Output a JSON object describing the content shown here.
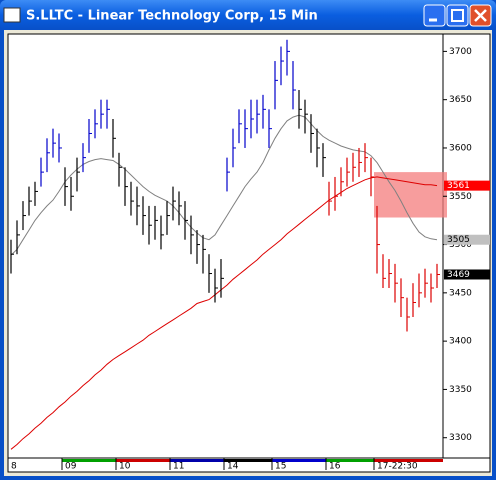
{
  "window": {
    "title": "S.LLTC - Linear Technology Corp, 15 Min"
  },
  "chart_data": {
    "type": "ohlc",
    "xlim": [
      -0.5,
      72
    ],
    "ylim": [
      3279,
      3718
    ],
    "yticks": [
      3700,
      3650,
      3600,
      3550,
      3500,
      3450,
      3400,
      3350,
      3300
    ],
    "xticks": [
      {
        "value": 0,
        "label": "8"
      },
      {
        "value": 9,
        "label": "09"
      },
      {
        "value": 18,
        "label": "10"
      },
      {
        "value": 27,
        "label": "11"
      },
      {
        "value": 36,
        "label": "14"
      },
      {
        "value": 44,
        "label": "15"
      },
      {
        "value": 53,
        "label": "16"
      },
      {
        "value": 61,
        "label": "17-22:30"
      }
    ],
    "series": [
      {
        "color": "#000000",
        "start": 0,
        "high": [
          3505,
          3525,
          3545,
          3560,
          3565
        ],
        "low": [
          3470,
          3490,
          3515,
          3530,
          3540
        ],
        "close": [
          3490,
          3510,
          3530,
          3545,
          3555
        ]
      },
      {
        "color": "#0000cc",
        "start": 5,
        "high": [
          3590,
          3610,
          3620,
          3615
        ],
        "low": [
          3560,
          3575,
          3590,
          3585
        ],
        "close": [
          3575,
          3595,
          3605,
          3600
        ]
      },
      {
        "color": "#000000",
        "start": 9,
        "high": [
          3580,
          3570,
          3590
        ],
        "low": [
          3540,
          3535,
          3555
        ],
        "close": [
          3560,
          3550,
          3575
        ]
      },
      {
        "color": "#0000cc",
        "start": 12,
        "high": [
          3605,
          3630,
          3640,
          3650,
          3650
        ],
        "low": [
          3575,
          3595,
          3610,
          3620,
          3620
        ],
        "close": [
          3590,
          3615,
          3625,
          3635,
          3640
        ]
      },
      {
        "color": "#000000",
        "start": 17,
        "high": [
          3630,
          3595,
          3580,
          3565,
          3560,
          3550,
          3540,
          3540,
          3530,
          3545,
          3560,
          3555,
          3545,
          3530,
          3515,
          3510,
          3490,
          3475,
          3485
        ],
        "low": [
          3590,
          3560,
          3540,
          3530,
          3520,
          3510,
          3500,
          3505,
          3495,
          3510,
          3525,
          3520,
          3505,
          3490,
          3480,
          3470,
          3450,
          3440,
          3445
        ],
        "close": [
          3610,
          3580,
          3560,
          3545,
          3540,
          3530,
          3520,
          3525,
          3510,
          3530,
          3545,
          3540,
          3525,
          3510,
          3500,
          3495,
          3470,
          3455,
          3465
        ]
      },
      {
        "color": "#0000cc",
        "start": 36,
        "high": [
          3590,
          3620,
          3640,
          3640,
          3650,
          3650,
          3655,
          3640,
          3690,
          3705,
          3712,
          3690
        ],
        "low": [
          3555,
          3580,
          3605,
          3600,
          3610,
          3615,
          3620,
          3600,
          3640,
          3665,
          3675,
          3640
        ],
        "close": [
          3575,
          3600,
          3625,
          3620,
          3630,
          3635,
          3640,
          3620,
          3670,
          3690,
          3700,
          3660
        ]
      },
      {
        "color": "#000000",
        "start": 48,
        "high": [
          3660,
          3650,
          3635,
          3620,
          3605
        ],
        "low": [
          3620,
          3615,
          3595,
          3580,
          3570
        ],
        "close": [
          3640,
          3635,
          3615,
          3600,
          3590
        ]
      },
      {
        "color": "#dd0000",
        "start": 53,
        "high": [
          3565,
          3570,
          3580,
          3590,
          3595,
          3600,
          3605,
          3590,
          3540,
          3490,
          3485,
          3480,
          3465,
          3445,
          3460,
          3470,
          3475,
          3470,
          3480
        ],
        "low": [
          3530,
          3535,
          3550,
          3560,
          3565,
          3570,
          3575,
          3550,
          3470,
          3455,
          3455,
          3440,
          3425,
          3410,
          3425,
          3435,
          3445,
          3440,
          3455
        ],
        "close": [
          3545,
          3550,
          3565,
          3575,
          3580,
          3585,
          3590,
          3570,
          3500,
          3465,
          3470,
          3460,
          3445,
          3425,
          3440,
          3450,
          3460,
          3455,
          3469
        ]
      }
    ],
    "lines": [
      {
        "color": "#808080",
        "tag_color": "#c0c0c0",
        "values": [
          3489,
          3495,
          3505,
          3515,
          3525,
          3533,
          3540,
          3546,
          3555,
          3565,
          3572,
          3578,
          3583,
          3586,
          3588,
          3589,
          3588,
          3587,
          3583,
          3578,
          3572,
          3566,
          3560,
          3555,
          3551,
          3548,
          3545,
          3540,
          3533,
          3525,
          3518,
          3512,
          3507,
          3505,
          3510,
          3520,
          3530,
          3540,
          3550,
          3560,
          3568,
          3575,
          3585,
          3598,
          3610,
          3620,
          3628,
          3632,
          3634,
          3632,
          3625,
          3618,
          3612,
          3608,
          3605,
          3602,
          3600,
          3598,
          3597,
          3596,
          3592,
          3585,
          3575,
          3565,
          3556,
          3545,
          3533,
          3522,
          3513,
          3508,
          3506,
          3505
        ]
      },
      {
        "color": "#dd0000",
        "tag_color": "#ff0000",
        "values": [
          3288,
          3293,
          3299,
          3304,
          3310,
          3315,
          3321,
          3326,
          3332,
          3337,
          3343,
          3348,
          3354,
          3359,
          3365,
          3370,
          3376,
          3381,
          3385,
          3389,
          3393,
          3397,
          3401,
          3406,
          3410,
          3414,
          3418,
          3422,
          3426,
          3430,
          3434,
          3439,
          3441,
          3443,
          3448,
          3453,
          3458,
          3464,
          3469,
          3474,
          3479,
          3484,
          3490,
          3495,
          3500,
          3505,
          3511,
          3516,
          3521,
          3526,
          3531,
          3536,
          3541,
          3546,
          3550,
          3554,
          3558,
          3561,
          3564,
          3567,
          3569,
          3570,
          3569,
          3568,
          3567,
          3566,
          3565,
          3564,
          3563,
          3562,
          3562,
          3561
        ]
      }
    ],
    "highlight": {
      "from": 61,
      "range": [
        3528,
        3575
      ],
      "color": "#f47c7c"
    }
  }
}
